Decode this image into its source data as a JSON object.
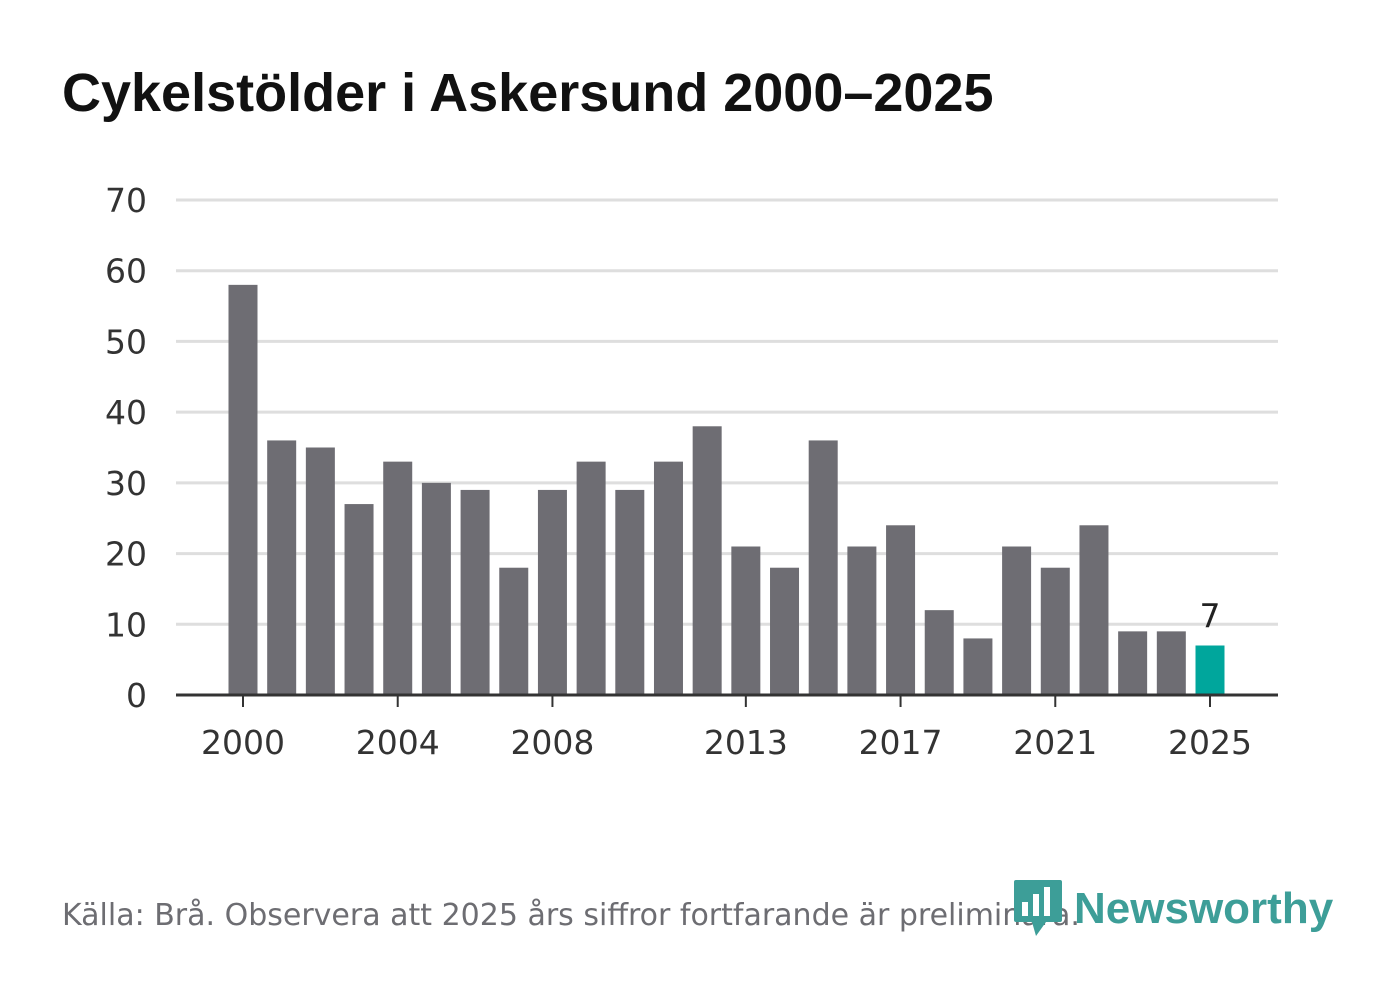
{
  "title": "Cykelstölder i Askersund 2000–2025",
  "source_note": "Källa: Brå. Observera att 2025 års siffror fortfarande är preliminära.",
  "brand": {
    "name": "Newsworthy",
    "icon": "newsworthy-logo-icon",
    "color": "#3d9e98"
  },
  "colors": {
    "bar": "#6e6d73",
    "highlight": "#00a69c",
    "grid": "#dedede",
    "axis": "#333333",
    "text": "#333333"
  },
  "chart_data": {
    "type": "bar",
    "title": "Cykelstölder i Askersund 2000–2025",
    "xlabel": "",
    "ylabel": "",
    "ylim": [
      0,
      70
    ],
    "yticks": [
      0,
      10,
      20,
      30,
      40,
      50,
      60,
      70
    ],
    "categories": [
      2000,
      2001,
      2002,
      2003,
      2004,
      2005,
      2006,
      2007,
      2008,
      2009,
      2010,
      2011,
      2012,
      2013,
      2014,
      2015,
      2016,
      2017,
      2018,
      2019,
      2020,
      2021,
      2022,
      2023,
      2024,
      2025
    ],
    "values": [
      58,
      36,
      35,
      27,
      33,
      30,
      29,
      18,
      29,
      33,
      29,
      33,
      38,
      21,
      18,
      36,
      21,
      24,
      12,
      8,
      21,
      18,
      24,
      9,
      9,
      7
    ],
    "xtick_labels": [
      2000,
      2004,
      2008,
      2013,
      2017,
      2021,
      2025
    ],
    "highlight": {
      "category": 2025,
      "label": "7"
    },
    "grid": true,
    "legend": "none"
  }
}
